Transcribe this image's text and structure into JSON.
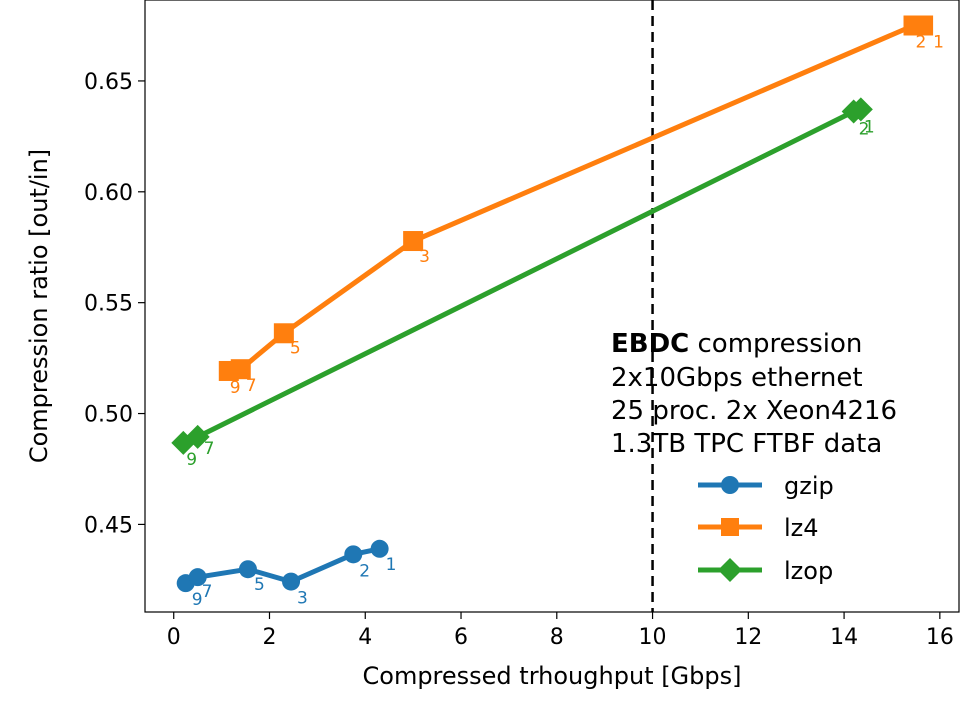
{
  "chart_data": {
    "type": "line",
    "xlabel": "Compressed trhoughput [Gbps]",
    "ylabel": "Compression ratio [out/in]",
    "xlim": [
      -0.6,
      16.4
    ],
    "ylim": [
      0.4105,
      0.6865
    ],
    "xticks": [
      0,
      2,
      4,
      6,
      8,
      10,
      12,
      14,
      16
    ],
    "yticks": [
      0.45,
      0.5,
      0.55,
      0.6,
      0.65
    ],
    "ytick_labels": [
      "0.45",
      "0.50",
      "0.55",
      "0.60",
      "0.65"
    ],
    "vline": {
      "x": 10,
      "style": "dashed"
    },
    "annotation": {
      "title_bold": "EBDC",
      "title_rest": " compression",
      "lines": [
        "2x10Gbps ethernet",
        "25 proc. 2x Xeon4216",
        "1.3TB TPC FTBF data"
      ]
    },
    "legend_position": "lower-right",
    "series": [
      {
        "name": "gzip",
        "color": "#1f77b4",
        "marker": "circle",
        "x": [
          0.25,
          0.5,
          1.55,
          2.45,
          3.75,
          4.3
        ],
        "y": [
          0.4235,
          0.4262,
          0.4298,
          0.4242,
          0.4365,
          0.439
        ],
        "labels": [
          "9",
          "7",
          "5",
          "3",
          "2",
          "1"
        ]
      },
      {
        "name": "lz4",
        "color": "#ff7f0e",
        "marker": "square",
        "x": [
          1.15,
          1.4,
          2.3,
          5.0,
          15.45,
          15.65
        ],
        "y": [
          0.5192,
          0.52,
          0.5362,
          0.5778,
          0.675,
          0.675
        ],
        "labels": [
          "9",
          "7",
          "5",
          "3",
          "2",
          "1"
        ]
      },
      {
        "name": "lzop",
        "color": "#2ca02c",
        "marker": "diamond",
        "x": [
          0.2,
          0.5,
          14.2,
          14.35
        ],
        "y": [
          0.4868,
          0.4895,
          0.6362,
          0.6372
        ],
        "labels": [
          "9",
          "7",
          "2",
          "1"
        ]
      }
    ]
  }
}
